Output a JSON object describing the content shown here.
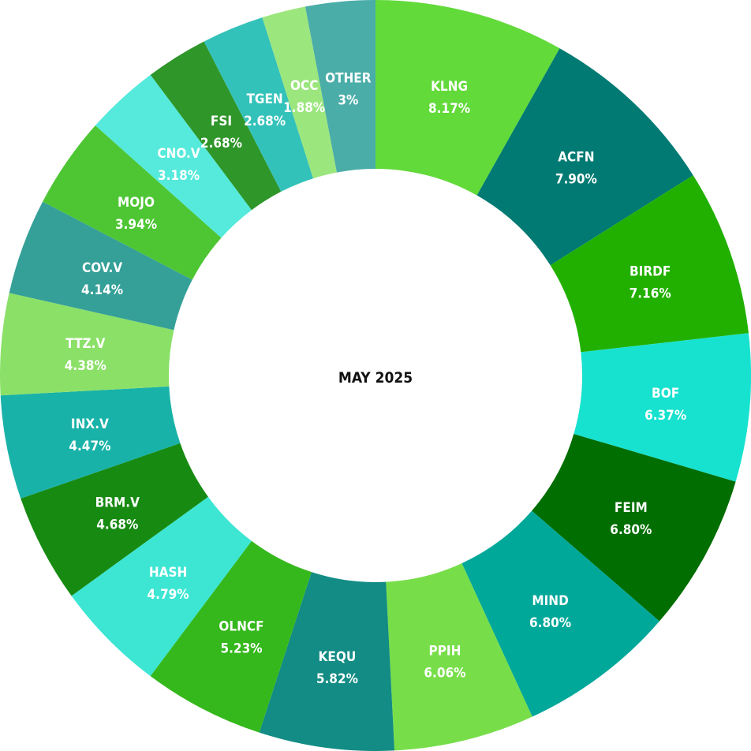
{
  "chart_data": {
    "type": "pie",
    "variant": "donut",
    "center_label": "MAY  2025",
    "slices": [
      {
        "name": "KLNG",
        "value": 8.17,
        "label": "8.17%",
        "color": "#62da3a"
      },
      {
        "name": "ACFN",
        "value": 7.9,
        "label": "7.90%",
        "color": "#007a72"
      },
      {
        "name": "BIRDF",
        "value": 7.16,
        "label": "7.16%",
        "color": "#22b000"
      },
      {
        "name": "BOF",
        "value": 6.37,
        "label": "6.37%",
        "color": "#17e2cf"
      },
      {
        "name": "FEIM",
        "value": 6.8,
        "label": "6.80%",
        "color": "#006e00"
      },
      {
        "name": "MIND",
        "value": 6.8,
        "label": "6.80%",
        "color": "#00a89a"
      },
      {
        "name": "PPIH",
        "value": 6.06,
        "label": "6.06%",
        "color": "#77de4a"
      },
      {
        "name": "KEQU",
        "value": 5.82,
        "label": "5.82%",
        "color": "#128c84"
      },
      {
        "name": "OLNCF",
        "value": 5.23,
        "label": "5.23%",
        "color": "#35b81c"
      },
      {
        "name": "HASH",
        "value": 4.79,
        "label": "4.79%",
        "color": "#3de6d3"
      },
      {
        "name": "BRM.V",
        "value": 4.68,
        "label": "4.68%",
        "color": "#178a12"
      },
      {
        "name": "INX.V",
        "value": 4.47,
        "label": "4.47%",
        "color": "#18b2a8"
      },
      {
        "name": "TTZ.V",
        "value": 4.38,
        "label": "4.38%",
        "color": "#8be068"
      },
      {
        "name": "COV.V",
        "value": 4.14,
        "label": "4.14%",
        "color": "#35a098"
      },
      {
        "name": "MOJO",
        "value": 3.94,
        "label": "3.94%",
        "color": "#4ec634"
      },
      {
        "name": "CNO.V",
        "value": 3.18,
        "label": "3.18%",
        "color": "#55eadb"
      },
      {
        "name": "FSI",
        "value": 2.68,
        "label": "2.68%",
        "color": "#2f962a"
      },
      {
        "name": "TGEN",
        "value": 2.68,
        "label": "2.68%",
        "color": "#33c2ba"
      },
      {
        "name": "OCC",
        "value": 1.88,
        "label": "1.88%",
        "color": "#9ce67e"
      },
      {
        "name": "OTHER",
        "value": 3.0,
        "label": "3%",
        "color": "#4aada8"
      }
    ]
  }
}
